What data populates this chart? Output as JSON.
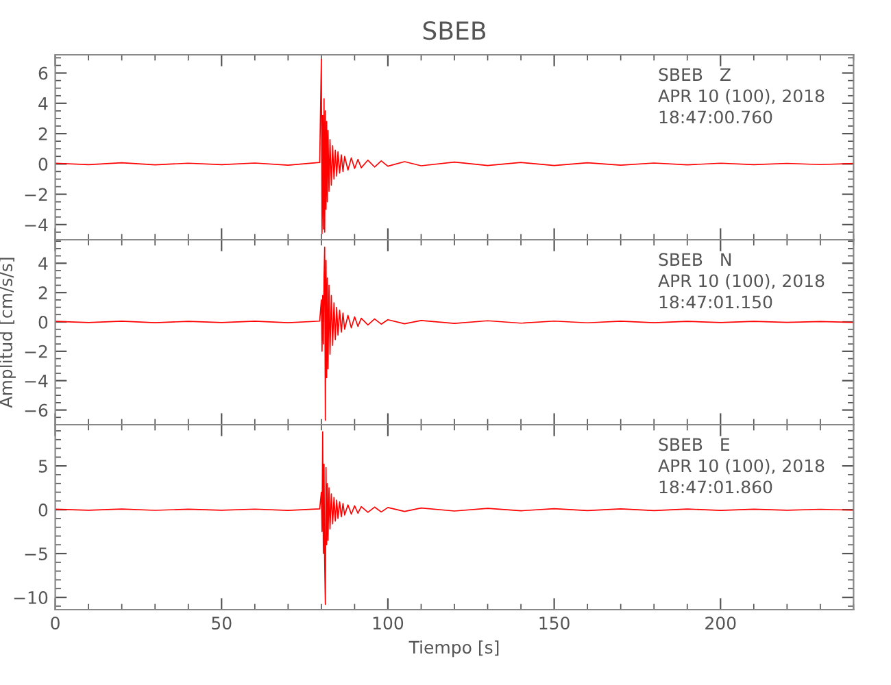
{
  "chart_data": [
    {
      "type": "line",
      "title": "SBEB",
      "annotations": [
        "SBEB   Z",
        "APR 10 (100), 2018",
        "18:47:00.760"
      ],
      "x": [
        0,
        10,
        20,
        30,
        40,
        50,
        60,
        70,
        79.5,
        80,
        80.2,
        80.4,
        80.6,
        80.8,
        81,
        81.2,
        81.4,
        81.6,
        81.8,
        82,
        82.3,
        82.6,
        83,
        83.4,
        83.8,
        84.2,
        84.6,
        85,
        85.5,
        86,
        86.5,
        87,
        88,
        89,
        90,
        91,
        92,
        94,
        96,
        98,
        100,
        105,
        110,
        120,
        130,
        140,
        150,
        160,
        170,
        180,
        190,
        200,
        210,
        220,
        230,
        240
      ],
      "series": [
        {
          "color": "#ff0000",
          "values": [
            0.05,
            -0.05,
            0.08,
            -0.06,
            0.05,
            -0.05,
            0.06,
            -0.08,
            0.1,
            6.9,
            -4.6,
            3.2,
            -4.3,
            4.3,
            -4.5,
            3.5,
            -3.0,
            2.8,
            -2.5,
            2.2,
            -1.8,
            1.6,
            -1.4,
            1.2,
            -1.0,
            0.9,
            -0.8,
            0.8,
            -0.6,
            0.6,
            -0.5,
            0.5,
            -0.4,
            0.4,
            -0.3,
            0.3,
            -0.25,
            0.25,
            -0.2,
            0.2,
            -0.15,
            0.15,
            -0.12,
            0.12,
            -0.1,
            0.1,
            -0.1,
            0.08,
            -0.08,
            0.06,
            -0.06,
            0.05,
            -0.05,
            0.04,
            -0.04,
            0.03
          ]
        }
      ],
      "xlim": [
        0,
        240
      ],
      "xticks": [
        0,
        50,
        100,
        150,
        200
      ],
      "ylim": [
        -5,
        7.2
      ],
      "yticks": [
        {
          "value": -4,
          "label": "−4"
        },
        {
          "value": -2,
          "label": "−2"
        },
        0,
        2,
        4,
        6
      ],
      "tick_labels": "y",
      "grid": false,
      "legend": false,
      "marker": "none",
      "line_style": "solid"
    },
    {
      "type": "line",
      "ylabel": "Amplitud [cm/s/s]",
      "annotations": [
        "SBEB   N",
        "APR 10 (100), 2018",
        "18:47:01.150"
      ],
      "x": [
        0,
        10,
        20,
        30,
        40,
        50,
        60,
        70,
        79.5,
        80,
        80.2,
        80.4,
        80.6,
        80.8,
        81,
        81.2,
        81.4,
        81.6,
        81.8,
        82,
        82.3,
        82.6,
        83,
        83.4,
        83.8,
        84.2,
        84.6,
        85,
        85.5,
        86,
        86.5,
        87,
        88,
        89,
        90,
        91,
        92,
        94,
        96,
        98,
        100,
        105,
        110,
        120,
        130,
        140,
        150,
        160,
        170,
        180,
        190,
        200,
        210,
        220,
        230,
        240
      ],
      "series": [
        {
          "color": "#ff0000",
          "values": [
            0.04,
            -0.04,
            0.05,
            -0.05,
            0.04,
            -0.04,
            0.05,
            -0.05,
            0.06,
            1.5,
            -2.0,
            1.8,
            -1.5,
            3.0,
            5.1,
            -6.7,
            4.2,
            -3.8,
            3.0,
            -3.2,
            2.5,
            -2.2,
            1.8,
            -1.6,
            1.3,
            -1.2,
            1.0,
            -0.9,
            0.8,
            -0.7,
            0.6,
            -0.5,
            0.45,
            -0.4,
            0.35,
            -0.3,
            0.25,
            -0.2,
            0.2,
            -0.15,
            0.15,
            -0.12,
            0.1,
            -0.1,
            0.08,
            -0.08,
            0.06,
            -0.06,
            0.05,
            -0.05,
            0.04,
            -0.04,
            0.04,
            -0.03,
            0.03,
            -0.03
          ]
        }
      ],
      "xlim": [
        0,
        240
      ],
      "xticks": [
        0,
        50,
        100,
        150,
        200
      ],
      "ylim": [
        -7,
        5.6
      ],
      "yticks": [
        {
          "value": -6,
          "label": "−6"
        },
        {
          "value": -4,
          "label": "−4"
        },
        {
          "value": -2,
          "label": "−2"
        },
        0,
        2,
        4
      ],
      "tick_labels": "y",
      "grid": false,
      "legend": false,
      "marker": "none",
      "line_style": "solid"
    },
    {
      "type": "line",
      "xlabel": "Tiempo [s]",
      "annotations": [
        "SBEB   E",
        "APR 10 (100), 2018",
        "18:47:01.860"
      ],
      "x": [
        0,
        10,
        20,
        30,
        40,
        50,
        60,
        70,
        79.5,
        80,
        80.2,
        80.4,
        80.6,
        80.8,
        81,
        81.2,
        81.4,
        81.6,
        81.8,
        82,
        82.3,
        82.6,
        83,
        83.4,
        83.8,
        84.2,
        84.6,
        85,
        85.5,
        86,
        86.5,
        87,
        88,
        89,
        90,
        91,
        92,
        94,
        96,
        98,
        100,
        105,
        110,
        120,
        130,
        140,
        150,
        160,
        170,
        180,
        190,
        200,
        210,
        220,
        230,
        240
      ],
      "series": [
        {
          "color": "#ff0000",
          "values": [
            0.06,
            -0.06,
            0.08,
            -0.07,
            0.06,
            -0.06,
            0.07,
            -0.08,
            0.1,
            2.0,
            -2.5,
            8.9,
            -5.0,
            5.2,
            -6.0,
            -10.8,
            4.8,
            -4.0,
            3.0,
            -3.5,
            2.5,
            -2.2,
            1.8,
            -1.6,
            1.4,
            -1.3,
            1.1,
            -1.0,
            0.9,
            -0.8,
            0.7,
            -0.6,
            0.55,
            -0.5,
            0.45,
            -0.4,
            0.35,
            -0.3,
            0.3,
            -0.25,
            0.25,
            -0.2,
            0.2,
            -0.15,
            0.15,
            -0.12,
            0.12,
            -0.1,
            0.1,
            -0.1,
            0.08,
            -0.08,
            0.06,
            -0.06,
            0.05,
            -0.05
          ]
        }
      ],
      "xlim": [
        0,
        240
      ],
      "xticks": [
        0,
        50,
        100,
        150,
        200
      ],
      "ylim": [
        -11.4,
        9.7
      ],
      "yticks": [
        {
          "value": -10,
          "label": "−10"
        },
        {
          "value": -5,
          "label": "−5"
        },
        0,
        5
      ],
      "grid": false,
      "legend": false,
      "marker": "none",
      "line_style": "solid"
    }
  ]
}
